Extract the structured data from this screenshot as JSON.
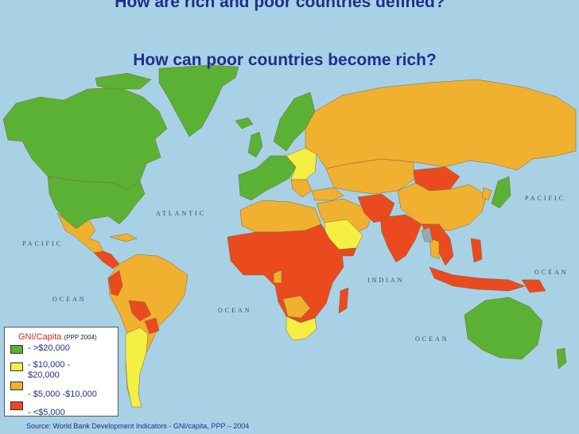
{
  "title_line1": "How are rich and poor countries defined?",
  "title_line2": "How can poor countries become rich?",
  "oceans": {
    "atlantic": "ATLANTIC",
    "pacific_left": "PACIFIC",
    "ocean_left": "OCEAN",
    "pacific_right": "PACIFIC",
    "ocean_right": "OCEAN",
    "ocean_atlantic": "OCEAN",
    "indian": "INDIAN",
    "ocean_indian": "OCEAN"
  },
  "legend": {
    "title": "GNI/Capita",
    "subtitle": "(PPP 2004)",
    "items": [
      {
        "label": "- >$20,000",
        "color": "#5ab133"
      },
      {
        "label": "- $10,000 - $20,000",
        "color": "#f4ef42"
      },
      {
        "label": "- $5,000 -$10,000",
        "color": "#f0b030"
      },
      {
        "label": "- <$5,000",
        "color": "#ea4a1e"
      }
    ]
  },
  "source": "Source: World Bank Development Indicators - GNI/capita, PPP – 2004",
  "colors": {
    "ocean": "#a9d1e6",
    "rich": "#5ab133",
    "upper_middle": "#f4ef42",
    "middle": "#f0b030",
    "poor": "#ea4a1e",
    "no_data": "#9aa8b4",
    "title": "#1e2f8c"
  }
}
